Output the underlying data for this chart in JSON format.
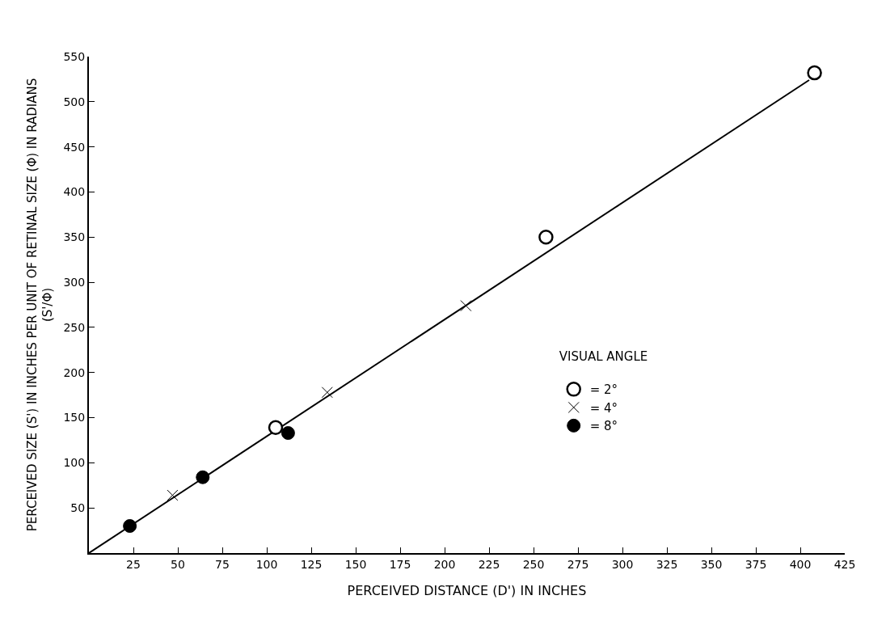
{
  "chart_data": {
    "type": "scatter",
    "xlabel": "PERCEIVED DISTANCE (D') IN INCHES",
    "ylabel": "PERCEIVED SIZE (S') IN INCHES PER UNIT OF RETINAL SIZE (Φ) IN RADIANS\n(S'/Φ)",
    "legend_title": "VISUAL ANGLE",
    "legend": "right",
    "grid": false,
    "xlim": [
      0,
      425
    ],
    "xticks": [
      25,
      50,
      75,
      100,
      125,
      150,
      175,
      200,
      225,
      250,
      275,
      300,
      325,
      350,
      375,
      400,
      425
    ],
    "ylim": [
      0,
      550
    ],
    "yticks": [
      50,
      100,
      150,
      200,
      250,
      300,
      350,
      400,
      450,
      500,
      550
    ],
    "series": [
      {
        "type": "line",
        "color": "#000000",
        "marker": "none",
        "line_style": "solid",
        "x": [
          0,
          405
        ],
        "values": [
          0,
          524
        ]
      },
      {
        "name": "= 2°",
        "color": "#000000",
        "marker": "circle-open",
        "x": [
          105,
          257,
          408
        ],
        "values": [
          139,
          350,
          532
        ]
      },
      {
        "name": "= 4°",
        "color": "#000000",
        "marker": "cross",
        "x": [
          47,
          134,
          212
        ],
        "values": [
          64,
          178,
          274
        ]
      },
      {
        "name": "= 8°",
        "color": "#000000",
        "marker": "circle",
        "x": [
          23,
          64,
          112
        ],
        "values": [
          30,
          84,
          133
        ]
      }
    ]
  }
}
